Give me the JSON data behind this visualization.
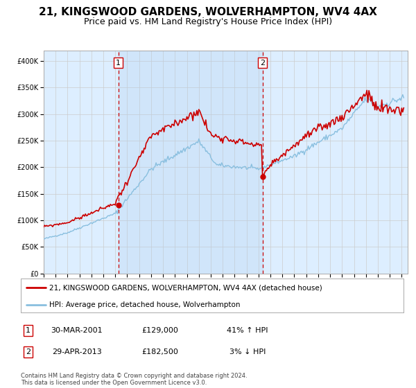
{
  "title1": "21, KINGSWOOD GARDENS, WOLVERHAMPTON, WV4 4AX",
  "title2": "Price paid vs. HM Land Registry's House Price Index (HPI)",
  "legend_label1": "21, KINGSWOOD GARDENS, WOLVERHAMPTON, WV4 4AX (detached house)",
  "legend_label2": "HPI: Average price, detached house, Wolverhampton",
  "sale1_label": "1",
  "sale1_date": "30-MAR-2001",
  "sale1_price": "£129,000",
  "sale1_hpi": "41% ↑ HPI",
  "sale1_year": 2001.25,
  "sale1_value": 129000,
  "sale2_label": "2",
  "sale2_date": "29-APR-2013",
  "sale2_price": "£182,500",
  "sale2_hpi": "3% ↓ HPI",
  "sale2_year": 2013.33,
  "sale2_value": 182500,
  "hpi_color": "#89bfdf",
  "price_color": "#cc0000",
  "vline_color": "#cc0000",
  "dot_color": "#cc0000",
  "background_color": "#ddeeff",
  "shade_color": "#cce0f5",
  "plot_bg": "#ffffff",
  "grid_color": "#cccccc",
  "xlim_min": 1995,
  "xlim_max": 2025.5,
  "ylim_min": 0,
  "ylim_max": 420000,
  "footnote": "Contains HM Land Registry data © Crown copyright and database right 2024.\nThis data is licensed under the Open Government Licence v3.0.",
  "title_fontsize": 11,
  "subtitle_fontsize": 9
}
